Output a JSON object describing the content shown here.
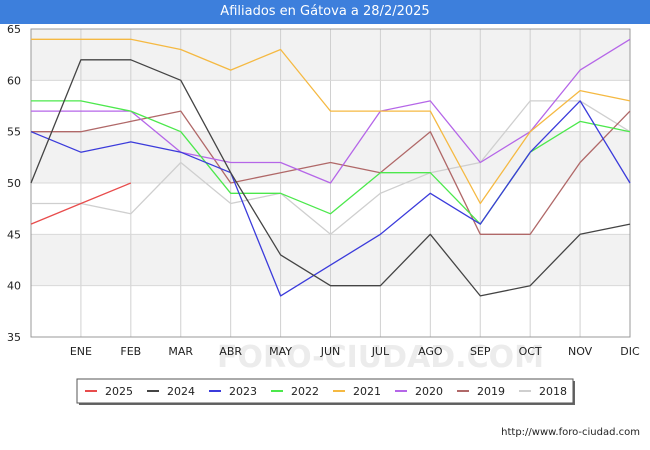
{
  "chart_data": {
    "type": "line",
    "title": "Afiliados en Gátova a 28/2/2025",
    "categories": [
      "",
      "ENE",
      "FEB",
      "MAR",
      "ABR",
      "MAY",
      "JUN",
      "JUL",
      "AGO",
      "SEP",
      "OCT",
      "NOV",
      "DIC"
    ],
    "ylim": [
      35,
      65
    ],
    "yticks": [
      35,
      40,
      45,
      50,
      55,
      60,
      65
    ],
    "xlabel": "",
    "ylabel": "",
    "grid": true,
    "legend_position": "bottom",
    "series": [
      {
        "name": "2025",
        "color": "#e84c4c",
        "values": [
          46,
          48,
          50,
          null,
          null,
          null,
          null,
          null,
          null,
          null,
          null,
          null,
          null
        ]
      },
      {
        "name": "2024",
        "color": "#444444",
        "values": [
          50,
          62,
          62,
          60,
          51,
          43,
          40,
          40,
          45,
          39,
          40,
          45,
          46
        ]
      },
      {
        "name": "2023",
        "color": "#3b3bdb",
        "values": [
          55,
          53,
          54,
          53,
          51,
          39,
          42,
          45,
          49,
          46,
          53,
          58,
          50
        ]
      },
      {
        "name": "2022",
        "color": "#4ce84c",
        "values": [
          58,
          58,
          57,
          55,
          49,
          49,
          47,
          51,
          51,
          46,
          53,
          56,
          55
        ]
      },
      {
        "name": "2021",
        "color": "#f5b942",
        "values": [
          64,
          64,
          64,
          63,
          61,
          63,
          57,
          57,
          57,
          48,
          55,
          59,
          58
        ]
      },
      {
        "name": "2020",
        "color": "#b566e8",
        "values": [
          57,
          57,
          57,
          53,
          52,
          52,
          50,
          57,
          58,
          52,
          55,
          61,
          64
        ]
      },
      {
        "name": "2019",
        "color": "#b06868",
        "values": [
          55,
          55,
          56,
          57,
          50,
          51,
          52,
          51,
          55,
          45,
          45,
          52,
          57
        ]
      },
      {
        "name": "2018",
        "color": "#cfcfcf",
        "values": [
          48,
          48,
          47,
          52,
          48,
          49,
          45,
          49,
          51,
          52,
          58,
          58,
          55
        ]
      }
    ]
  },
  "footer": {
    "url": "http://www.foro-ciudad.com"
  },
  "watermark": "FORO-CIUDAD.COM"
}
